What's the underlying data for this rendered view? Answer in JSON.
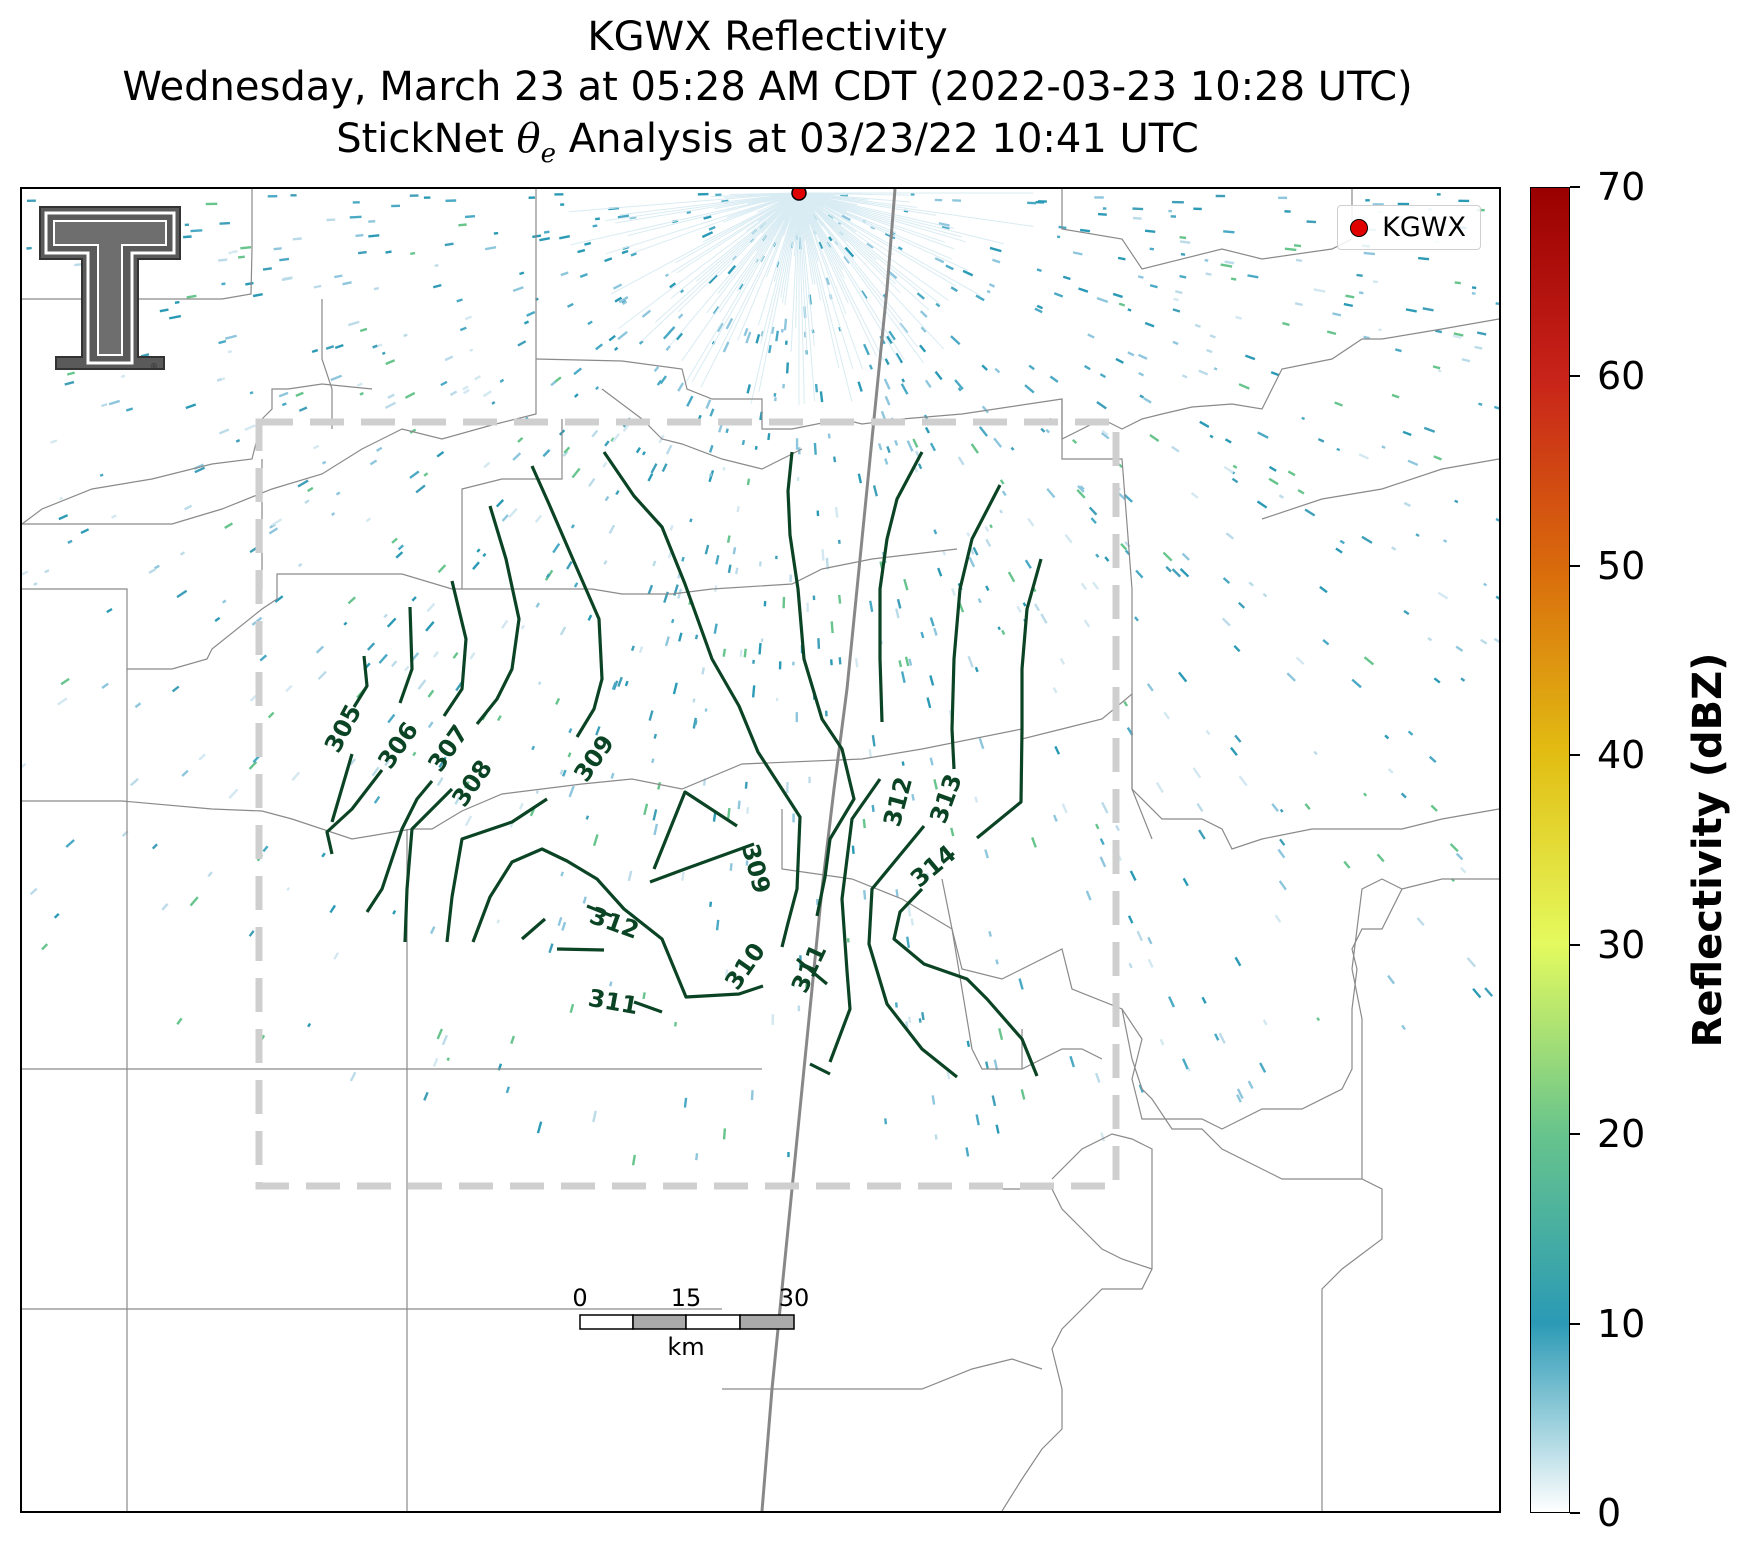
{
  "title": {
    "line1": "KGWX Reflectivity",
    "line2": "Wednesday, March 23 at 05:28 AM CDT (2022-03-23 10:28 UTC)",
    "line3_prefix": "StickNet ",
    "line3_symbol": "θ",
    "line3_subscript": "e",
    "line3_suffix": " Analysis at 03/23/22 10:41 UTC"
  },
  "legend": {
    "label": "KGWX",
    "color": "#e00000"
  },
  "colorbar": {
    "title": "Reflectivity (dBZ)",
    "ticks": [
      0,
      10,
      20,
      30,
      40,
      50,
      60,
      70
    ],
    "min": 0,
    "max": 70,
    "colors": [
      "#ffffff",
      "#2b9ab5",
      "#67c48c",
      "#e4fa5e",
      "#e2be13",
      "#d96a0c",
      "#c8231a",
      "#9a0000"
    ]
  },
  "scale_bar": {
    "ticks": [
      "0",
      "15",
      "30"
    ],
    "unit": "km"
  },
  "contours": {
    "color": "#0b4424",
    "labels": [
      "305",
      "306",
      "307",
      "308",
      "309",
      "309",
      "310",
      "311",
      "311",
      "312",
      "312",
      "313",
      "314"
    ]
  },
  "logo": {
    "name": "Texas Tech Double T"
  }
}
